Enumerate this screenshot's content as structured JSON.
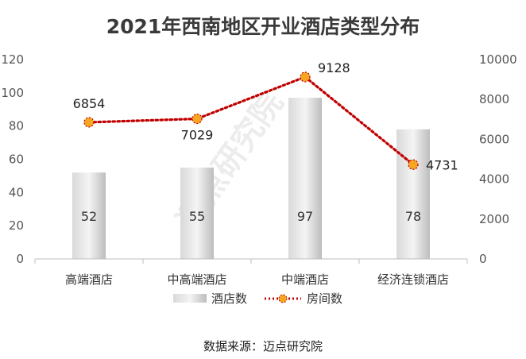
{
  "chart_data": {
    "type": "bar",
    "title": "2021年西南地区开业酒店类型分布",
    "categories": [
      "高端酒店",
      "中高端酒店",
      "中端酒店",
      "经济连锁酒店"
    ],
    "series": [
      {
        "name": "酒店数",
        "type": "bar",
        "axis": "left",
        "values": [
          52,
          55,
          97,
          78
        ],
        "color": "#c8c8c8"
      },
      {
        "name": "房间数",
        "type": "line",
        "axis": "right",
        "values": [
          6854,
          7029,
          9128,
          4731
        ],
        "color": "#c00000",
        "marker_color": "#f5a623"
      }
    ],
    "y_left": {
      "ylim": [
        0,
        120
      ],
      "ticks": [
        "0",
        "20",
        "40",
        "60",
        "80",
        "100",
        "120"
      ]
    },
    "y_right": {
      "ylim": [
        0,
        10000
      ],
      "ticks": [
        "0",
        "2000",
        "4000",
        "6000",
        "8000",
        "10000"
      ]
    },
    "legend": {
      "placement": "bottom"
    },
    "grid": false
  },
  "source_note": "数据来源：迈点研究院",
  "watermark": "迈点研究院"
}
